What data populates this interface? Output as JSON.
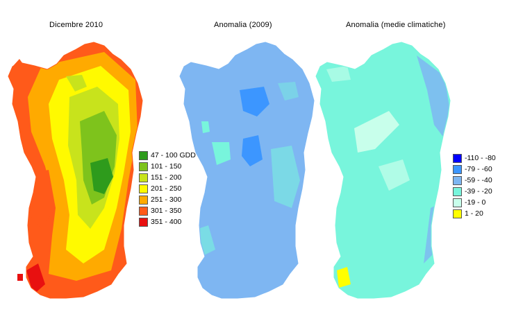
{
  "panels": [
    {
      "title": "Dicembre 2010",
      "legend": [
        {
          "label": "47 - 100 GDD",
          "color": "#2e9b1c"
        },
        {
          "label": "101 - 150",
          "color": "#7ec31c"
        },
        {
          "label": "151 - 200",
          "color": "#c8e31c"
        },
        {
          "label": "201 - 250",
          "color": "#fffa00"
        },
        {
          "label": "251 - 300",
          "color": "#ffaa00"
        },
        {
          "label": "301 - 350",
          "color": "#ff5a1a"
        },
        {
          "label": "351 - 400",
          "color": "#e81010"
        }
      ]
    },
    {
      "title": "Anomalia (2009)"
    },
    {
      "title": "Anomalia (medie climatiche)",
      "legend": [
        {
          "label": "-110 - -80",
          "color": "#0000ff"
        },
        {
          "label": "-79 - -60",
          "color": "#3c96ff"
        },
        {
          "label": "-59 - -40",
          "color": "#7eb6f2"
        },
        {
          "label": "-39 - -20",
          "color": "#78f5dc"
        },
        {
          "label": "-19 - 0",
          "color": "#c8ffeb"
        },
        {
          "label": "1 - 20",
          "color": "#ffff00"
        }
      ]
    }
  ]
}
